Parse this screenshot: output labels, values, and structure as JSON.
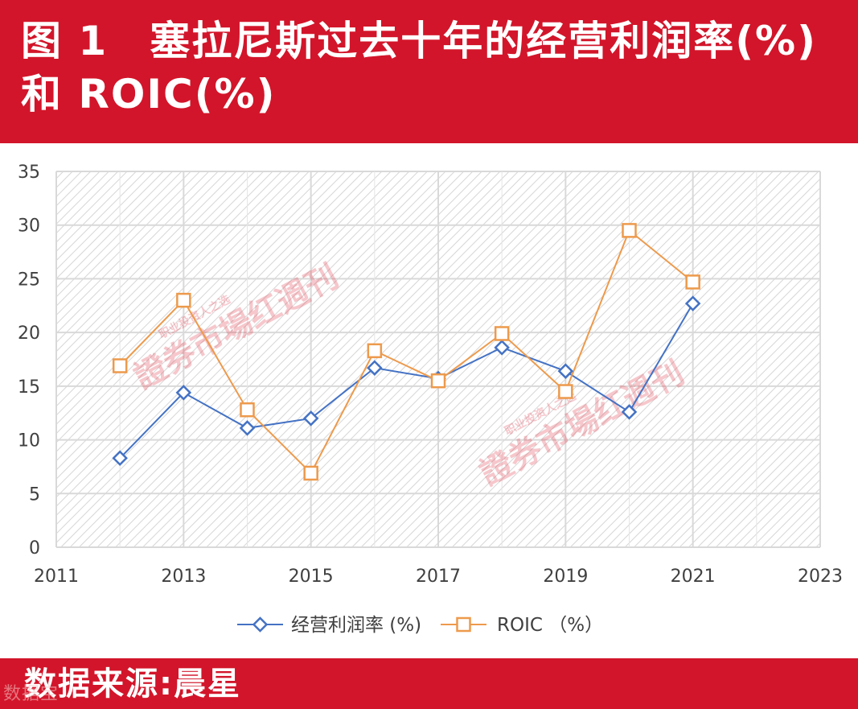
{
  "header": {
    "title": "图 1　塞拉尼斯过去十年的经营利润率(%)和 ROIC(%)"
  },
  "watermark": {
    "text": "證券市場红週刊",
    "small": "职业投资人之选"
  },
  "footer": {
    "source": "数据来源:晨星",
    "corner_mark": "数据宝"
  },
  "colors": {
    "header_bg": "#d2152a",
    "operating_margin": "#4472c4",
    "roic": "#ed9a4c",
    "grid": "#d9d9d9"
  },
  "chart_data": {
    "type": "line",
    "title": "",
    "xlabel": "",
    "ylabel": "",
    "xlim": [
      2011,
      2023
    ],
    "ylim": [
      0,
      35
    ],
    "x_ticks": [
      2011,
      2013,
      2015,
      2017,
      2019,
      2021,
      2023
    ],
    "y_ticks": [
      0,
      5,
      10,
      15,
      20,
      25,
      30,
      35
    ],
    "grid": true,
    "legend_position": "bottom",
    "x": [
      2012,
      2013,
      2014,
      2015,
      2016,
      2017,
      2018,
      2019,
      2020,
      2021
    ],
    "series": [
      {
        "name": "经营利润率 (%)",
        "marker": "diamond",
        "color": "#4472c4",
        "values": [
          8.3,
          14.4,
          11.1,
          12.0,
          16.7,
          15.7,
          18.6,
          16.4,
          12.6,
          22.7
        ]
      },
      {
        "name": "ROIC （%）",
        "marker": "square",
        "color": "#ed9a4c",
        "values": [
          16.9,
          23.0,
          12.8,
          6.9,
          18.3,
          15.5,
          19.9,
          14.5,
          29.5,
          24.7
        ]
      }
    ]
  }
}
